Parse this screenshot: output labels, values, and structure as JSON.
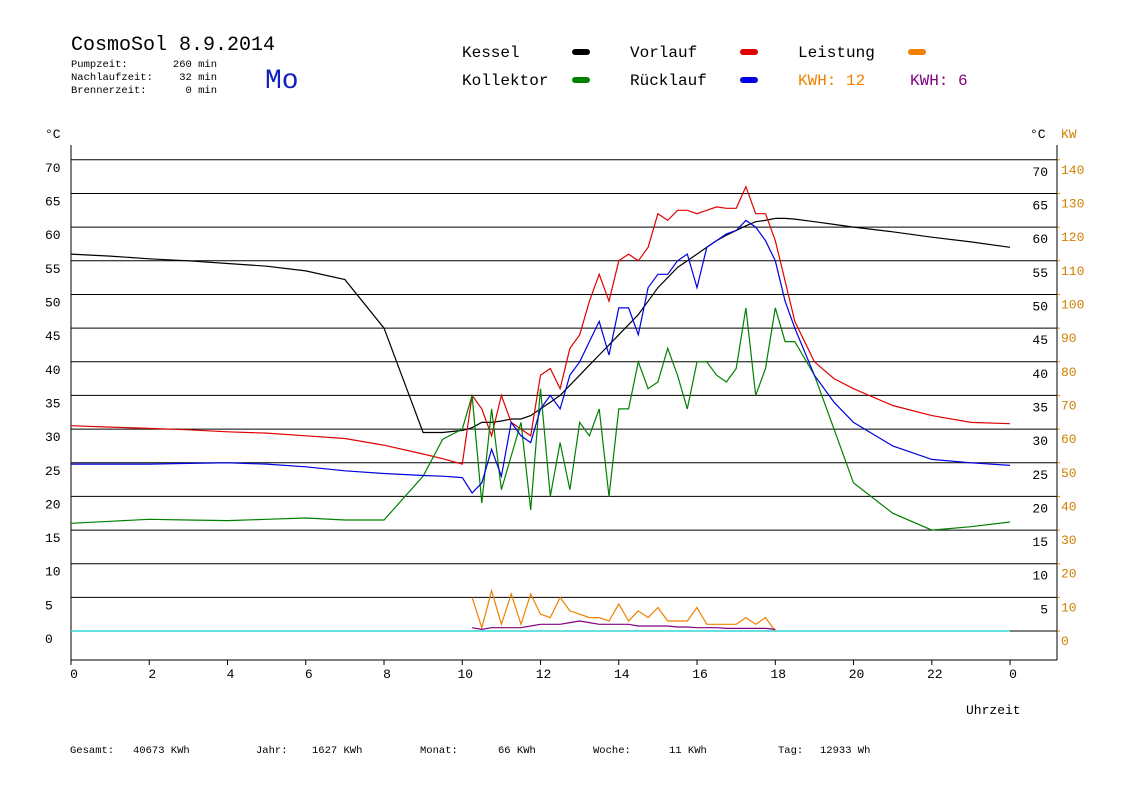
{
  "header": {
    "title": "CosmoSol 8.9.2014",
    "weekday": "Mo",
    "info": [
      {
        "label": "Pumpzeit:",
        "value": "260 min"
      },
      {
        "label": "Nachlaufzeit:",
        "value": "32 min"
      },
      {
        "label": "Brennerzeit:",
        "value": "0 min"
      }
    ]
  },
  "footer": [
    {
      "label": "Gesamt:",
      "value": "40673 KWh"
    },
    {
      "label": "Jahr:",
      "value": "1627 KWh"
    },
    {
      "label": "Monat:",
      "value": "66 KWh"
    },
    {
      "label": "Woche:",
      "value": "11 KWh"
    },
    {
      "label": "Tag:",
      "value": "12933 Wh"
    }
  ],
  "chart_data": {
    "type": "line",
    "y_unit": "°C",
    "y2_unit": "KW",
    "x_label": "Uhrzeit",
    "x": [
      0,
      1,
      2,
      3,
      4,
      5,
      6,
      7,
      8,
      9,
      9.5,
      10,
      10.25,
      10.5,
      10.75,
      11,
      11.25,
      11.5,
      11.75,
      12,
      12.25,
      12.5,
      12.75,
      13,
      13.25,
      13.5,
      13.75,
      14,
      14.25,
      14.5,
      14.75,
      15,
      15.25,
      15.5,
      15.75,
      16,
      16.25,
      16.5,
      16.75,
      17,
      17.25,
      17.5,
      17.75,
      18,
      18.25,
      18.5,
      19,
      19.5,
      20,
      21,
      22,
      23,
      24
    ],
    "series": [
      {
        "name": "Kessel",
        "color": "#000000",
        "values": [
          56,
          55.7,
          55.3,
          55,
          54.6,
          54.2,
          53.5,
          52.2,
          45,
          29.5,
          29.5,
          29.8,
          30.2,
          31,
          31,
          31.2,
          31.5,
          31.5,
          32,
          33,
          34,
          35,
          36.5,
          38,
          39.5,
          41,
          42.5,
          44,
          45.5,
          47,
          49,
          51,
          52.5,
          54,
          55,
          56,
          57,
          58,
          58.8,
          59.5,
          60.2,
          60.8,
          61,
          61.3,
          61.3,
          61.2,
          60.8,
          60.4,
          60,
          59.3,
          58.5,
          57.8,
          57
        ]
      },
      {
        "name": "Vorlauf",
        "color": "#e00000",
        "values": [
          30.5,
          30.3,
          30.1,
          29.9,
          29.6,
          29.4,
          29,
          28.6,
          27.6,
          26.3,
          25.6,
          24.8,
          35,
          33,
          29,
          35,
          31,
          30,
          29,
          38,
          39,
          36,
          42,
          44,
          49,
          53,
          49,
          55,
          56,
          55,
          57,
          62,
          61,
          62.5,
          62.5,
          62,
          62.5,
          63,
          62.8,
          62.8,
          66,
          62,
          62,
          58,
          52,
          46,
          40,
          37.5,
          36,
          33.5,
          32,
          31,
          30.8
        ]
      },
      {
        "name": "Leistung",
        "color": "#f08000",
        "axis": "y2",
        "kwh_label": "KWH: 12",
        "values": [
          null,
          null,
          null,
          null,
          null,
          null,
          null,
          null,
          null,
          null,
          null,
          null,
          10,
          1,
          12,
          2,
          11,
          2,
          11,
          5,
          4,
          10,
          6,
          5,
          4,
          4,
          3,
          8,
          3,
          6,
          4,
          7,
          3,
          3,
          3,
          7,
          2,
          2,
          2,
          2,
          4,
          2,
          4,
          0,
          null,
          null,
          null,
          null,
          null,
          null,
          null,
          null,
          null
        ]
      },
      {
        "name": "Kollektor",
        "color": "#008000",
        "values": [
          16,
          16.3,
          16.6,
          16.5,
          16.4,
          16.6,
          16.8,
          16.5,
          16.5,
          23,
          28.5,
          30,
          35,
          19,
          33,
          21,
          26,
          31,
          18,
          36,
          20,
          28,
          21,
          31,
          29,
          33,
          20,
          33,
          33,
          40,
          36,
          37,
          42,
          38,
          33,
          40,
          40,
          38,
          37,
          39,
          48,
          35,
          39,
          48,
          43,
          43,
          38,
          30,
          22,
          17.5,
          15,
          15.5,
          16.2
        ]
      },
      {
        "name": "Rücklauf",
        "color": "#0000e0",
        "values": [
          24.8,
          24.8,
          24.8,
          24.9,
          25,
          24.8,
          24.4,
          23.8,
          23.4,
          23.1,
          23,
          22.8,
          20.5,
          22,
          27,
          23,
          31,
          29,
          28,
          33,
          35,
          33,
          38,
          40,
          43,
          46,
          41,
          48,
          48,
          44,
          51,
          53,
          53,
          55,
          56,
          51,
          57,
          58,
          59,
          59.5,
          61,
          60,
          58,
          55,
          49,
          45,
          38,
          34,
          31,
          27.5,
          25.5,
          25,
          24.6
        ]
      },
      {
        "color": "#800080",
        "axis": "y2",
        "kwh_label": "KWH: 6",
        "values": [
          null,
          null,
          null,
          null,
          null,
          null,
          null,
          null,
          null,
          null,
          null,
          null,
          1,
          0.5,
          1,
          1,
          1,
          1,
          1.5,
          2,
          2,
          2,
          2.5,
          3,
          2.5,
          2,
          2,
          2,
          2,
          1.5,
          1.5,
          1.5,
          1.5,
          1.2,
          1.2,
          1,
          1,
          1,
          0.8,
          0.8,
          0.8,
          0.8,
          0.8,
          0.5,
          null,
          null,
          null,
          null,
          null,
          null,
          null,
          null,
          null
        ]
      }
    ],
    "xlim": [
      0,
      25.2
    ],
    "xticks": [
      0,
      2,
      4,
      6,
      8,
      10,
      12,
      14,
      16,
      18,
      20,
      22,
      {
        "value": 24,
        "label": "0"
      }
    ],
    "ylim": [
      -4.3,
      72.2
    ],
    "yticks": [
      0,
      5,
      10,
      15,
      20,
      25,
      30,
      35,
      40,
      45,
      50,
      55,
      60,
      65,
      70
    ],
    "yticks_right": [
      5,
      10,
      15,
      20,
      25,
      30,
      35,
      40,
      45,
      50,
      55,
      60,
      65,
      70
    ],
    "y2lim": [
      -8.6,
      144.4
    ],
    "y2ticks": [
      0,
      10,
      20,
      30,
      40,
      50,
      60,
      70,
      80,
      90,
      100,
      110,
      120,
      130,
      140
    ],
    "y2_color": "#d08000",
    "grid": true,
    "reference_line": {
      "y": 0,
      "color": "#30d8d8"
    }
  }
}
